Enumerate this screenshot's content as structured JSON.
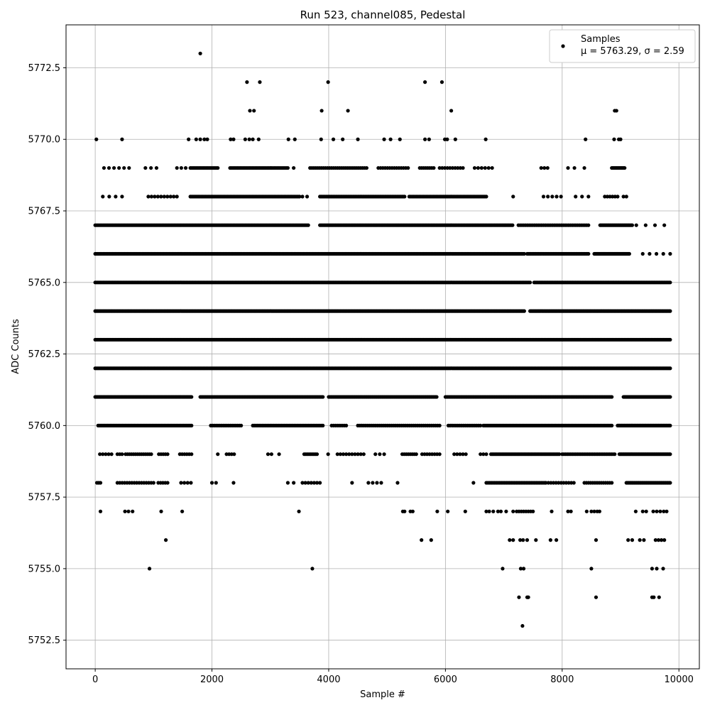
{
  "chart_data": {
    "type": "scatter",
    "title": "Run 523, channel085, Pedestal",
    "xlabel": "Sample #",
    "ylabel": "ADC Counts",
    "xlim": [
      -500,
      10350
    ],
    "ylim": [
      5751.5,
      5774.0
    ],
    "xticks": [
      0,
      2000,
      4000,
      6000,
      8000,
      10000
    ],
    "xtick_labels": [
      "0",
      "2000",
      "4000",
      "6000",
      "8000",
      "10000"
    ],
    "yticks": [
      5752.5,
      5755.0,
      5757.5,
      5760.0,
      5762.5,
      5765.0,
      5767.5,
      5770.0,
      5772.5
    ],
    "ytick_labels": [
      "5752.5",
      "5755.0",
      "5757.5",
      "5760.0",
      "5762.5",
      "5765.0",
      "5767.5",
      "5770.0",
      "5772.5"
    ],
    "grid": true,
    "legend": {
      "placement": "top-right",
      "entries": [
        {
          "name": "Samples",
          "stats": "μ = 5763.29, σ = 2.59"
        }
      ]
    },
    "series": [
      {
        "name": "Samples",
        "color": "#000000",
        "marker": "circle",
        "points": [
          [
            1800,
            5773
          ],
          [
            2600,
            5772
          ],
          [
            2820,
            5772
          ],
          [
            3990,
            5772
          ],
          [
            5650,
            5772
          ],
          [
            5940,
            5772
          ],
          [
            2650,
            5771
          ],
          [
            2720,
            5771
          ],
          [
            3880,
            5771
          ],
          [
            4330,
            5771
          ],
          [
            6100,
            5771
          ],
          [
            8900,
            5771
          ],
          [
            8930,
            5771
          ],
          [
            20,
            5770
          ],
          [
            460,
            5770
          ],
          [
            1600,
            5770
          ],
          [
            1730,
            5770
          ],
          [
            1800,
            5770
          ],
          [
            1870,
            5770
          ],
          [
            1920,
            5770
          ],
          [
            2320,
            5770
          ],
          [
            2370,
            5770
          ],
          [
            2570,
            5770
          ],
          [
            2640,
            5770
          ],
          [
            2700,
            5770
          ],
          [
            2800,
            5770
          ],
          [
            3310,
            5770
          ],
          [
            3420,
            5770
          ],
          [
            3870,
            5770
          ],
          [
            4080,
            5770
          ],
          [
            4240,
            5770
          ],
          [
            4500,
            5770
          ],
          [
            4950,
            5770
          ],
          [
            5060,
            5770
          ],
          [
            5220,
            5770
          ],
          [
            5650,
            5770
          ],
          [
            5720,
            5770
          ],
          [
            5990,
            5770
          ],
          [
            6030,
            5770
          ],
          [
            6170,
            5770
          ],
          [
            6690,
            5770
          ],
          [
            8400,
            5770
          ],
          [
            8890,
            5770
          ],
          [
            8970,
            5770
          ],
          [
            9000,
            5770
          ],
          [
            5756,
            5756
          ],
          [
            1210,
            5756
          ],
          [
            5590,
            5756
          ],
          [
            7100,
            5756
          ],
          [
            7160,
            5756
          ],
          [
            7280,
            5756
          ],
          [
            7330,
            5756
          ],
          [
            7400,
            5756
          ],
          [
            7550,
            5756
          ],
          [
            7800,
            5756
          ],
          [
            7900,
            5756
          ],
          [
            8580,
            5756
          ],
          [
            9130,
            5756
          ],
          [
            9200,
            5756
          ],
          [
            9330,
            5756
          ],
          [
            9400,
            5756
          ],
          [
            9600,
            5756
          ],
          [
            9650,
            5756
          ],
          [
            9700,
            5756
          ],
          [
            9750,
            5756
          ],
          [
            930,
            5755
          ],
          [
            3720,
            5755
          ],
          [
            6980,
            5755
          ],
          [
            7290,
            5755
          ],
          [
            7340,
            5755
          ],
          [
            8500,
            5755
          ],
          [
            9540,
            5755
          ],
          [
            9620,
            5755
          ],
          [
            9730,
            5755
          ],
          [
            7260,
            5754
          ],
          [
            7400,
            5754
          ],
          [
            7420,
            5754
          ],
          [
            8580,
            5754
          ],
          [
            9540,
            5754
          ],
          [
            9570,
            5754
          ],
          [
            9660,
            5754
          ],
          [
            7320,
            5753
          ],
          [
            90,
            5757
          ],
          [
            510,
            5757
          ],
          [
            570,
            5757
          ],
          [
            640,
            5757
          ],
          [
            1130,
            5757
          ],
          [
            1490,
            5757
          ],
          [
            3490,
            5757
          ],
          [
            5270,
            5757
          ],
          [
            5300,
            5757
          ],
          [
            5400,
            5757
          ],
          [
            5440,
            5757
          ],
          [
            5860,
            5757
          ],
          [
            6040,
            5757
          ],
          [
            6340,
            5757
          ],
          [
            6700,
            5757
          ],
          [
            6750,
            5757
          ],
          [
            6820,
            5757
          ],
          [
            6900,
            5757
          ],
          [
            6950,
            5757
          ],
          [
            7040,
            5757
          ],
          [
            7160,
            5757
          ],
          [
            7220,
            5757
          ],
          [
            7260,
            5757
          ],
          [
            7300,
            5757
          ],
          [
            7340,
            5757
          ],
          [
            7380,
            5757
          ],
          [
            7420,
            5757
          ],
          [
            7460,
            5757
          ],
          [
            7500,
            5757
          ],
          [
            7820,
            5757
          ],
          [
            8100,
            5757
          ],
          [
            8150,
            5757
          ],
          [
            8420,
            5757
          ],
          [
            8500,
            5757
          ],
          [
            8550,
            5757
          ],
          [
            8600,
            5757
          ],
          [
            8640,
            5757
          ],
          [
            9260,
            5757
          ],
          [
            9380,
            5757
          ],
          [
            9440,
            5757
          ],
          [
            9560,
            5757
          ],
          [
            9620,
            5757
          ],
          [
            9680,
            5757
          ],
          [
            9740,
            5757
          ],
          [
            9790,
            5757
          ]
        ],
        "rows": [
          {
            "y": 5758,
            "ranges": [
              [
                30,
                90,
                3
              ],
              [
                380,
                1000,
                16
              ],
              [
                1080,
                1240,
                5
              ],
              [
                1470,
                1640,
                4
              ],
              [
                2000,
                2070,
                2
              ],
              [
                2370,
                2370,
                1
              ],
              [
                3300,
                3400,
                2
              ],
              [
                3550,
                3850,
                7
              ],
              [
                4400,
                4400,
                1
              ],
              [
                4680,
                4900,
                4
              ],
              [
                5180,
                5180,
                1
              ],
              [
                6480,
                6480,
                1
              ],
              [
                6700,
                7700,
                36
              ],
              [
                7720,
                8200,
                12
              ],
              [
                8380,
                8850,
                14
              ],
              [
                9100,
                9850,
                40
              ]
            ]
          },
          {
            "y": 5759,
            "ranges": [
              [
                80,
                280,
                5
              ],
              [
                380,
                460,
                3
              ],
              [
                520,
                960,
                14
              ],
              [
                1090,
                1240,
                5
              ],
              [
                1450,
                1650,
                6
              ],
              [
                2100,
                2100,
                1
              ],
              [
                2250,
                2380,
                4
              ],
              [
                2960,
                3020,
                2
              ],
              [
                3150,
                3150,
                1
              ],
              [
                3580,
                3800,
                9
              ],
              [
                3990,
                3990,
                1
              ],
              [
                4150,
                4600,
                10
              ],
              [
                4800,
                4950,
                3
              ],
              [
                5260,
                5500,
                8
              ],
              [
                5600,
                5900,
                8
              ],
              [
                6150,
                6350,
                5
              ],
              [
                6600,
                6700,
                3
              ],
              [
                6780,
                7950,
                50
              ],
              [
                8000,
                8900,
                32
              ],
              [
                8980,
                9850,
                45
              ]
            ]
          },
          {
            "y": 5760,
            "ranges": [
              [
                50,
                1650,
                70
              ],
              [
                1980,
                2500,
                18
              ],
              [
                2700,
                3900,
                45
              ],
              [
                4050,
                4300,
                8
              ],
              [
                4500,
                5900,
                42
              ],
              [
                6050,
                6600,
                18
              ],
              [
                6650,
                8850,
                90
              ],
              [
                8950,
                9850,
                55
              ]
            ]
          },
          {
            "y": 5761,
            "ranges": [
              [
                0,
                1650,
                110
              ],
              [
                1800,
                3900,
                100
              ],
              [
                4000,
                5850,
                100
              ],
              [
                6000,
                8850,
                140
              ],
              [
                9050,
                9850,
                70
              ]
            ]
          },
          {
            "y": 5762,
            "ranges": [
              [
                0,
                9850,
                420
              ]
            ]
          },
          {
            "y": 5763,
            "ranges": [
              [
                0,
                9850,
                430
              ]
            ]
          },
          {
            "y": 5764,
            "ranges": [
              [
                0,
                7350,
                330
              ],
              [
                7450,
                9850,
                120
              ]
            ]
          },
          {
            "y": 5765,
            "ranges": [
              [
                0,
                7450,
                330
              ],
              [
                7520,
                9850,
                110
              ]
            ]
          },
          {
            "y": 5766,
            "ranges": [
              [
                0,
                7350,
                320
              ],
              [
                7400,
                8450,
                50
              ],
              [
                8550,
                9150,
                45
              ],
              [
                9380,
                9850,
                5
              ]
            ]
          },
          {
            "y": 5767,
            "ranges": [
              [
                0,
                3650,
                160
              ],
              [
                3850,
                7150,
                150
              ],
              [
                7250,
                8450,
                40
              ],
              [
                8650,
                9200,
                30
              ],
              [
                9270,
                9750,
                4
              ]
            ]
          },
          {
            "y": 5768,
            "ranges": [
              [
                130,
                460,
                4
              ],
              [
                910,
                1400,
                10
              ],
              [
                1630,
                3500,
                80
              ],
              [
                3550,
                3630,
                2
              ],
              [
                3850,
                5300,
                70
              ],
              [
                5380,
                6700,
                55
              ],
              [
                7160,
                7160,
                1
              ],
              [
                7680,
                7980,
                5
              ],
              [
                8230,
                8450,
                3
              ],
              [
                8730,
                8950,
                6
              ],
              [
                9050,
                9100,
                2
              ]
            ]
          },
          {
            "y": 5769,
            "ranges": [
              [
                150,
                580,
                6
              ],
              [
                860,
                1050,
                3
              ],
              [
                1400,
                1550,
                3
              ],
              [
                1630,
                2100,
                20
              ],
              [
                2310,
                3300,
                40
              ],
              [
                3400,
                3400,
                1
              ],
              [
                3680,
                4650,
                30
              ],
              [
                4850,
                5360,
                14
              ],
              [
                5560,
                5800,
                8
              ],
              [
                5900,
                6300,
                10
              ],
              [
                6500,
                6800,
                6
              ],
              [
                7640,
                7750,
                3
              ],
              [
                8100,
                8210,
                2
              ],
              [
                8380,
                8380,
                1
              ],
              [
                8850,
                9070,
                14
              ]
            ]
          }
        ]
      }
    ]
  }
}
